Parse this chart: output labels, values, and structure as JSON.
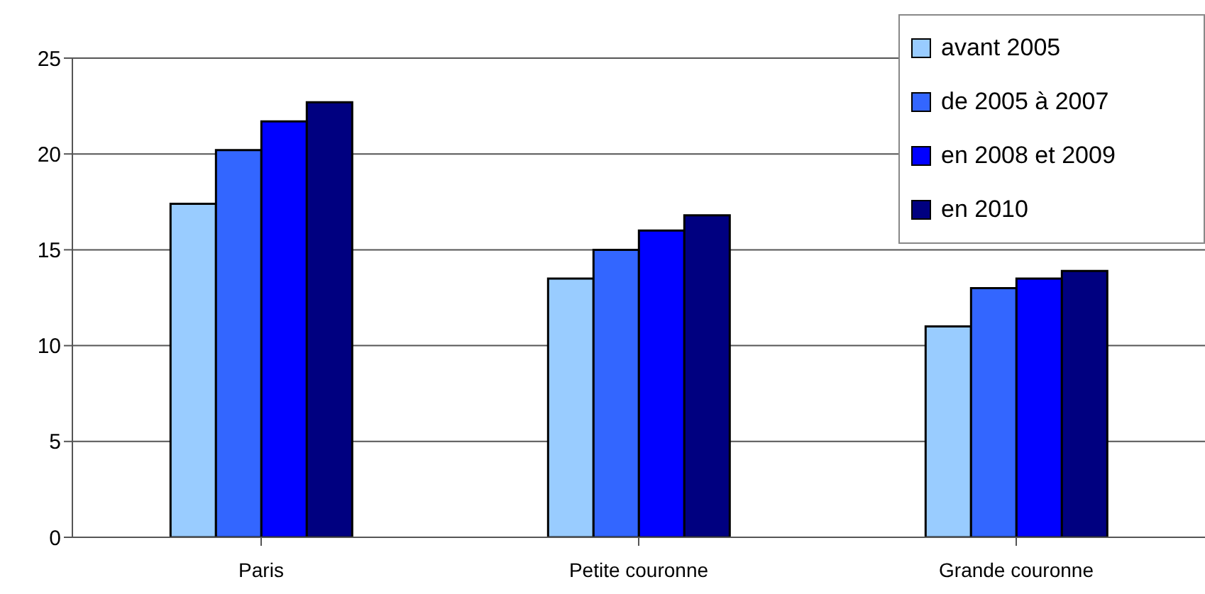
{
  "chart_data": {
    "type": "bar",
    "categories": [
      "Paris",
      "Petite couronne",
      "Grande couronne"
    ],
    "series": [
      {
        "name": "avant 2005",
        "color": "#99ccff",
        "values": [
          17.4,
          13.5,
          11.0
        ]
      },
      {
        "name": "de 2005 à 2007",
        "color": "#3366ff",
        "values": [
          20.2,
          15.0,
          13.0
        ]
      },
      {
        "name": "en 2008 et 2009",
        "color": "#0000ff",
        "values": [
          21.7,
          16.0,
          13.5
        ]
      },
      {
        "name": "en 2010",
        "color": "#000080",
        "values": [
          22.7,
          16.8,
          13.9
        ]
      }
    ],
    "ylim": [
      0,
      25
    ],
    "yticks": [
      0,
      5,
      10,
      15,
      20,
      25
    ],
    "grid": "y",
    "legend": "top right"
  }
}
